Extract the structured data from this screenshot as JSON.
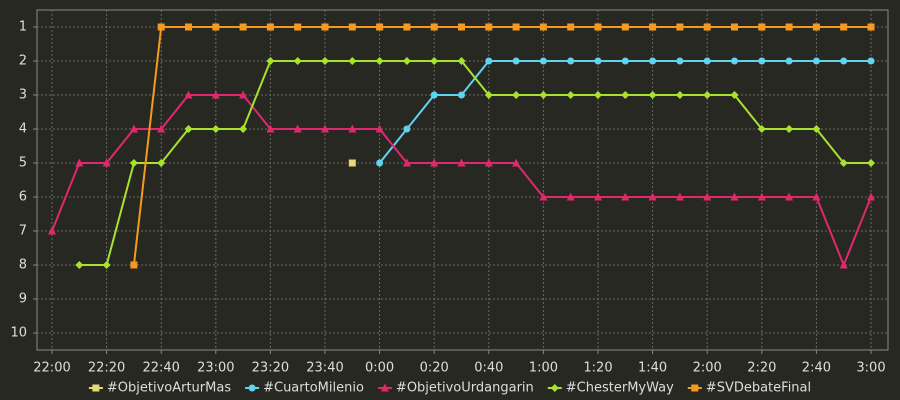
{
  "chart_data": {
    "type": "line",
    "categories": [
      "22:00",
      null,
      "22:20",
      null,
      "22:40",
      null,
      "23:00",
      null,
      "23:20",
      null,
      "23:40",
      null,
      "0:00",
      null,
      "0:20",
      null,
      "0:40",
      null,
      "1:00",
      null,
      "1:20",
      null,
      "1:40",
      null,
      "2:00",
      null,
      "2:20",
      null,
      "2:40",
      null,
      "3:00"
    ],
    "series": [
      {
        "name": "#ObjetivoArturMas",
        "color": "#e6d97a",
        "marker": "square",
        "values": [
          null,
          null,
          null,
          null,
          null,
          null,
          null,
          null,
          null,
          null,
          null,
          5,
          null,
          null,
          null,
          null,
          null,
          null,
          null,
          null,
          null,
          null,
          null,
          null,
          null,
          null,
          null,
          null,
          null,
          null,
          null
        ]
      },
      {
        "name": "#CuartoMilenio",
        "color": "#5fd3ef",
        "marker": "circle",
        "values": [
          null,
          null,
          null,
          null,
          null,
          null,
          null,
          null,
          null,
          null,
          null,
          null,
          5,
          4,
          3,
          3,
          2,
          2,
          2,
          2,
          2,
          2,
          2,
          2,
          2,
          2,
          2,
          2,
          2,
          2,
          2
        ]
      },
      {
        "name": "#ObjetivoUrdangarin",
        "color": "#e0286e",
        "marker": "triangle",
        "values": [
          7,
          5,
          5,
          4,
          4,
          3,
          3,
          3,
          4,
          4,
          4,
          4,
          4,
          5,
          5,
          5,
          5,
          5,
          6,
          6,
          6,
          6,
          6,
          6,
          6,
          6,
          6,
          6,
          6,
          8,
          6
        ]
      },
      {
        "name": "#ChesterMyWay",
        "color": "#a6e22e",
        "marker": "diamond",
        "values": [
          null,
          8,
          8,
          5,
          5,
          4,
          4,
          4,
          2,
          2,
          2,
          2,
          2,
          2,
          2,
          2,
          3,
          3,
          3,
          3,
          3,
          3,
          3,
          3,
          3,
          3,
          4,
          4,
          4,
          5,
          5
        ]
      },
      {
        "name": "#SVDebateFinal",
        "color": "#f7991f",
        "marker": "square",
        "values": [
          null,
          null,
          null,
          8,
          1,
          1,
          1,
          1,
          1,
          1,
          1,
          1,
          1,
          1,
          1,
          1,
          1,
          1,
          1,
          1,
          1,
          1,
          1,
          1,
          1,
          1,
          1,
          1,
          1,
          1,
          1
        ]
      }
    ],
    "ylim": [
      0.5,
      10.5
    ],
    "y_inverted": true,
    "yticks": [
      1,
      2,
      3,
      4,
      5,
      6,
      7,
      8,
      9,
      10
    ],
    "grid": true,
    "legend": "bottom"
  }
}
